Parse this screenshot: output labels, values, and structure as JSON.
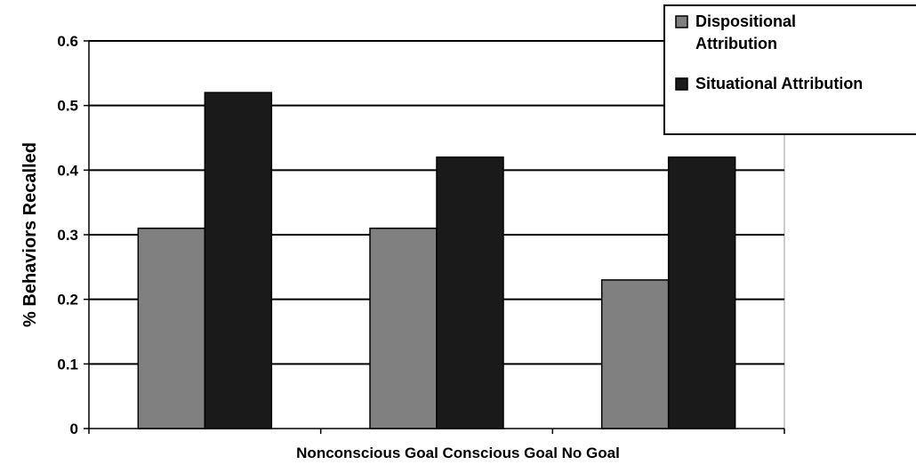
{
  "chart_data": {
    "type": "bar",
    "title": "",
    "xlabel": "Nonconscious Goal Conscious Goal No Goal",
    "ylabel": "% Behaviors Recalled",
    "categories": [
      "Nonconscious Goal",
      "Conscious Goal",
      "No Goal"
    ],
    "series": [
      {
        "name": "Dispositional Attribution",
        "values": [
          0.31,
          0.31,
          0.23
        ],
        "color": "#808080"
      },
      {
        "name": "Situational Attribution",
        "values": [
          0.52,
          0.42,
          0.42
        ],
        "color": "#1a1a1a"
      }
    ],
    "ylim": [
      0,
      0.6
    ],
    "yticks": [
      "0",
      "0.1",
      "0.2",
      "0.3",
      "0.4",
      "0.5",
      "0.6"
    ],
    "grid": true,
    "legend": "top-right"
  }
}
